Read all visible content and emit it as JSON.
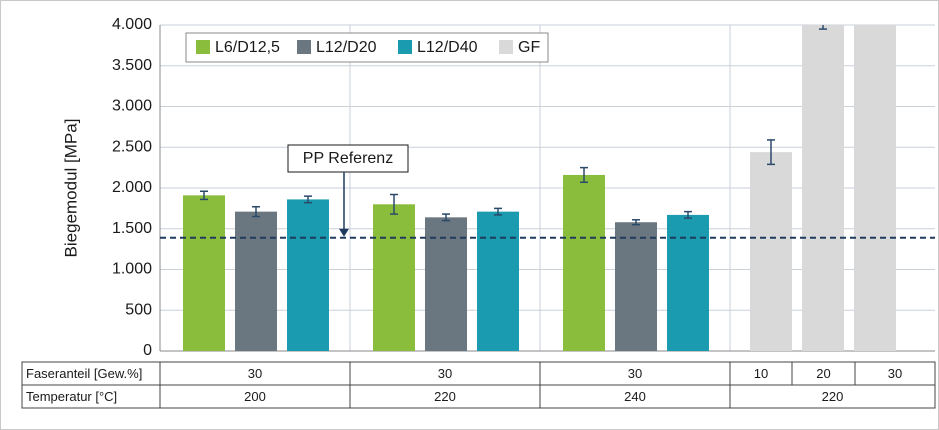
{
  "chart_data": {
    "type": "bar",
    "ylabel": "Biegemodul [MPa]",
    "ylim": [
      0,
      4000
    ],
    "yticks": [
      0,
      {
        "value": 500,
        "label": "500"
      },
      {
        "value": 1000,
        "label": "1.000"
      },
      {
        "value": 1500,
        "label": "1.500"
      },
      {
        "value": 2000,
        "label": "2.000"
      },
      {
        "value": 2500,
        "label": "2.500"
      },
      {
        "value": 3000,
        "label": "3.000"
      },
      {
        "value": 3500,
        "label": "3.500"
      },
      {
        "value": 4000,
        "label": "4.000"
      }
    ],
    "grid": true,
    "legend": "upper left",
    "series": [
      {
        "name": "L6/D12,5",
        "color": "#8bbd3c",
        "values": [
          1910,
          1800,
          2160,
          null,
          null,
          null
        ],
        "errors": [
          50,
          120,
          90,
          null,
          null,
          null
        ]
      },
      {
        "name": "L12/D20",
        "color": "#6b7780",
        "values": [
          1710,
          1640,
          1580,
          null,
          null,
          null
        ],
        "errors": [
          60,
          40,
          30,
          null,
          null,
          null
        ]
      },
      {
        "name": "L12/D40",
        "color": "#1a9bb0",
        "values": [
          1860,
          1710,
          1670,
          null,
          null,
          null
        ],
        "errors": [
          40,
          40,
          40,
          null,
          null,
          null
        ]
      },
      {
        "name": "GF",
        "color": "#d9d9d9",
        "values": [
          null,
          null,
          null,
          2440,
          4000,
          4000
        ],
        "errors": [
          null,
          null,
          null,
          150,
          50,
          null
        ]
      }
    ],
    "reference": {
      "label": "PP Referenz",
      "value": 1390,
      "color": "#1f3a5c"
    },
    "table": {
      "rows": [
        {
          "label": "Faseranteil [Gew.%]",
          "cells": [
            "30",
            "30",
            "30",
            "10",
            "20",
            "30"
          ]
        },
        {
          "label": "Temperatur [°C]",
          "cells": [
            "200",
            "220",
            "240",
            "220"
          ]
        }
      ]
    }
  }
}
